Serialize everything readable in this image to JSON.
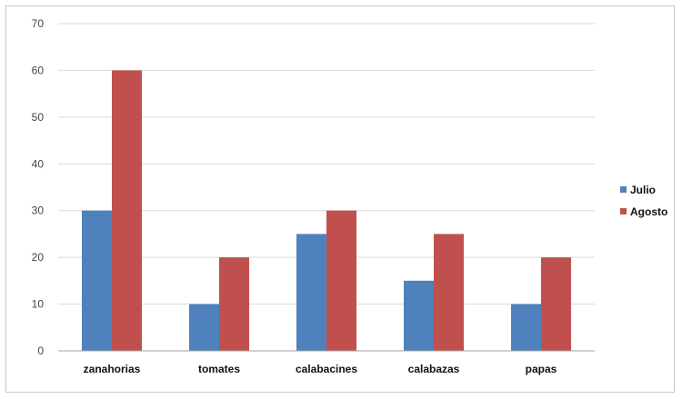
{
  "chart_data": {
    "type": "bar",
    "title": "",
    "xlabel": "",
    "ylabel": "",
    "categories": [
      "zanahorias",
      "tomates",
      "calabacines",
      "calabazas",
      "papas"
    ],
    "series": [
      {
        "name": "Julio",
        "values": [
          30,
          10,
          25,
          15,
          10
        ],
        "color": "#4f81bd"
      },
      {
        "name": "Agosto",
        "values": [
          60,
          20,
          30,
          25,
          20
        ],
        "color": "#c0504d"
      }
    ],
    "ylim": [
      0,
      70
    ],
    "yticks": [
      0,
      10,
      20,
      30,
      40,
      50,
      60,
      70
    ],
    "grid": true,
    "legend": "right"
  }
}
